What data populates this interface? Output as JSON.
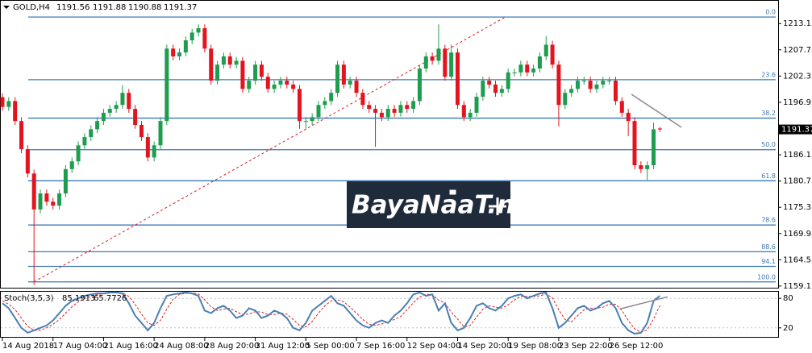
{
  "chart_data": [
    {
      "type": "candlestick",
      "title": "GOLD,H4",
      "categories": [
        "14 Aug 2018",
        null,
        null,
        null,
        null,
        null,
        null,
        null,
        "17 Aug 04:00",
        null,
        null,
        null,
        null,
        null,
        null,
        null,
        "21 Aug 16:00",
        null,
        null,
        null,
        null,
        null,
        null,
        null,
        "24 Aug 08:00",
        null,
        null,
        null,
        null,
        null,
        null,
        null,
        "28 Aug 20:00",
        null,
        null,
        null,
        null,
        null,
        null,
        null,
        "31 Aug 12:00",
        null,
        null,
        null,
        null,
        null,
        null,
        null,
        "5 Sep 00:00",
        null,
        null,
        null,
        null,
        null,
        null,
        null,
        "7 Sep 16:00",
        null,
        null,
        null,
        null,
        null,
        null,
        null,
        "12 Sep 04:00",
        null,
        null,
        null,
        null,
        null,
        null,
        null,
        "14 Sep 20:00",
        null,
        null,
        null,
        null,
        null,
        null,
        null,
        "19 Sep 08:00",
        null,
        null,
        null,
        null,
        null,
        null,
        null,
        "23 Sep 22:00",
        null,
        null,
        null,
        null,
        null,
        null,
        null,
        "26 Sep 12:00",
        null,
        null,
        null,
        null,
        null,
        null,
        null,
        null
      ],
      "open": [
        1198.0,
        1196.0,
        1197.2,
        1193.1,
        1187.3,
        1182.3,
        1174.9,
        1178.2,
        1176.5,
        1175.7,
        1178.2,
        1183.2,
        1184.8,
        1188.1,
        1189.8,
        1191.4,
        1193.1,
        1194.8,
        1195.6,
        1196.4,
        1198.9,
        1195.6,
        1192.3,
        1189.8,
        1185.6,
        1188.1,
        1193.1,
        1208.0,
        1206.4,
        1207.2,
        1209.7,
        1211.3,
        1212.2,
        1208.0,
        1201.4,
        1204.7,
        1206.4,
        1204.7,
        1205.5,
        1199.7,
        1201.4,
        1204.7,
        1202.2,
        1199.7,
        1200.6,
        1201.4,
        1200.6,
        1199.7,
        1193.1,
        1193.1,
        1193.9,
        1196.4,
        1197.2,
        1198.9,
        1204.7,
        1200.6,
        1201.4,
        1198.9,
        1196.4,
        1195.6,
        1194.8,
        1193.9,
        1195.6,
        1194.8,
        1196.4,
        1195.6,
        1197.2,
        1203.9,
        1206.4,
        1205.5,
        1208.0,
        1202.2,
        1207.2,
        1196.4,
        1193.9,
        1194.8,
        1198.1,
        1201.4,
        1200.6,
        1198.9,
        1199.7,
        1203.1,
        1203.1,
        1204.7,
        1203.1,
        1203.9,
        1206.4,
        1208.8,
        1204.7,
        1196.4,
        1198.9,
        1199.7,
        1201.4,
        1201.4,
        1199.7,
        1200.6,
        1201.4,
        1201.4,
        1197.2,
        1194.8,
        1193.1,
        1184.0,
        1183.2,
        1184.0,
        1191.56
      ],
      "high": [
        1198.8,
        1198.0,
        1198.0,
        1193.9,
        1188.1,
        1183.1,
        1179.0,
        1179.0,
        1177.3,
        1179.0,
        1184.0,
        1185.6,
        1188.9,
        1190.6,
        1192.2,
        1193.9,
        1195.6,
        1196.4,
        1197.2,
        1200.5,
        1199.7,
        1196.4,
        1193.1,
        1190.6,
        1188.9,
        1193.9,
        1208.8,
        1208.8,
        1208.0,
        1210.5,
        1212.1,
        1213.0,
        1213.0,
        1208.8,
        1205.5,
        1207.2,
        1207.2,
        1206.3,
        1206.3,
        1202.2,
        1205.5,
        1205.5,
        1203.0,
        1201.4,
        1202.2,
        1202.2,
        1201.4,
        1200.5,
        1193.9,
        1194.7,
        1197.2,
        1198.0,
        1199.7,
        1205.5,
        1205.5,
        1202.2,
        1202.2,
        1199.7,
        1197.2,
        1196.4,
        1195.6,
        1196.4,
        1196.4,
        1197.2,
        1197.2,
        1198.0,
        1204.7,
        1207.2,
        1207.2,
        1213.0,
        1208.8,
        1208.8,
        1208.0,
        1197.2,
        1195.6,
        1198.9,
        1202.2,
        1202.2,
        1201.4,
        1200.5,
        1203.9,
        1203.9,
        1205.5,
        1205.5,
        1204.7,
        1207.2,
        1210.6,
        1209.6,
        1205.5,
        1199.7,
        1200.5,
        1202.2,
        1202.2,
        1202.2,
        1201.4,
        1202.2,
        1202.2,
        1202.2,
        1198.0,
        1195.6,
        1193.9,
        1184.8,
        1184.8,
        1192.8,
        1191.88
      ],
      "low": [
        1195.2,
        1195.2,
        1192.3,
        1186.5,
        1181.5,
        1159.4,
        1174.1,
        1175.7,
        1174.9,
        1174.9,
        1177.4,
        1182.4,
        1184.0,
        1187.3,
        1189.0,
        1190.6,
        1192.3,
        1194.0,
        1194.8,
        1195.6,
        1194.8,
        1191.5,
        1189.0,
        1184.8,
        1184.8,
        1187.3,
        1192.3,
        1205.6,
        1205.6,
        1206.4,
        1208.9,
        1210.5,
        1207.2,
        1200.6,
        1200.6,
        1203.9,
        1203.9,
        1203.9,
        1198.9,
        1198.9,
        1200.6,
        1201.4,
        1198.9,
        1198.9,
        1199.8,
        1199.8,
        1198.9,
        1191.5,
        1191.5,
        1192.3,
        1193.1,
        1195.6,
        1196.4,
        1198.1,
        1199.8,
        1199.8,
        1198.1,
        1195.6,
        1194.8,
        1187.8,
        1193.1,
        1193.1,
        1194.0,
        1194.0,
        1194.8,
        1194.8,
        1196.4,
        1203.1,
        1204.7,
        1204.7,
        1201.4,
        1201.4,
        1195.6,
        1193.1,
        1193.1,
        1194.0,
        1197.3,
        1199.8,
        1198.1,
        1198.1,
        1198.9,
        1202.3,
        1202.3,
        1202.3,
        1202.3,
        1203.1,
        1205.6,
        1203.9,
        1192.0,
        1195.6,
        1198.1,
        1198.9,
        1200.6,
        1198.9,
        1198.9,
        1199.8,
        1200.6,
        1196.4,
        1194.0,
        1190.0,
        1183.2,
        1182.4,
        1181.0,
        1183.2,
        1190.88
      ],
      "close": [
        1196.0,
        1197.2,
        1193.1,
        1187.3,
        1182.3,
        1174.9,
        1178.2,
        1176.5,
        1175.7,
        1178.2,
        1183.2,
        1184.8,
        1188.1,
        1189.8,
        1191.4,
        1193.1,
        1194.8,
        1195.6,
        1196.4,
        1198.9,
        1195.6,
        1192.3,
        1189.8,
        1185.6,
        1188.1,
        1193.1,
        1208.0,
        1206.4,
        1207.2,
        1209.7,
        1211.3,
        1212.2,
        1208.0,
        1201.4,
        1204.7,
        1206.4,
        1204.7,
        1205.5,
        1199.7,
        1201.4,
        1204.7,
        1202.2,
        1199.7,
        1200.6,
        1201.4,
        1200.6,
        1199.7,
        1193.1,
        1193.1,
        1193.9,
        1196.4,
        1197.2,
        1198.9,
        1204.7,
        1200.6,
        1201.4,
        1198.9,
        1196.4,
        1195.6,
        1194.8,
        1193.9,
        1195.6,
        1194.8,
        1196.4,
        1195.6,
        1197.2,
        1203.9,
        1206.4,
        1205.5,
        1208.0,
        1202.2,
        1207.2,
        1196.4,
        1193.9,
        1194.8,
        1198.1,
        1201.4,
        1200.6,
        1198.9,
        1199.7,
        1203.1,
        1203.1,
        1204.7,
        1203.1,
        1203.9,
        1206.4,
        1208.8,
        1204.7,
        1196.4,
        1198.9,
        1199.7,
        1201.4,
        1201.4,
        1199.7,
        1200.6,
        1201.4,
        1201.4,
        1197.2,
        1194.8,
        1193.1,
        1184.0,
        1183.2,
        1184.0,
        1191.4,
        1191.37
      ],
      "up_color": "#1f9d4e",
      "down_color": "#e3141e",
      "ylim": [
        1158.8,
        1218.0
      ],
      "yticks": [
        1213.15,
        1207.75,
        1202.35,
        1196.95,
        1191.55,
        1186.15,
        1180.75,
        1175.35,
        1169.95,
        1164.55,
        1159.15
      ],
      "fib_color": "#3a78b8",
      "fib_levels": [
        {
          "label": "0.0",
          "value": 1214.5
        },
        {
          "label": "23.6",
          "value": 1201.6
        },
        {
          "label": "38.2",
          "value": 1193.7
        },
        {
          "label": "50.0",
          "value": 1187.2
        },
        {
          "label": "61.8",
          "value": 1180.8
        },
        {
          "label": "78.6",
          "value": 1171.7
        },
        {
          "label": "88.6",
          "value": 1166.2
        },
        {
          "label": "94.1",
          "value": 1163.2
        },
        {
          "label": "100.0",
          "value": 1160.0
        }
      ],
      "trendlines": [
        {
          "x": [
            5,
            79.7
          ],
          "y": [
            1160.0,
            1214.6
          ],
          "color": "#d62020",
          "dashed": true
        },
        {
          "x": [
            99.5,
            107.4
          ],
          "y": [
            1198.6,
            1191.8
          ],
          "color": "#8a8a8a",
          "dashed": false
        }
      ],
      "watermark": "BayaNaaT.ne"
    },
    {
      "type": "line",
      "title": "Stoch(3,5,3)",
      "series": [
        {
          "name": "Main",
          "color": "#4a7fb5",
          "dashed": false,
          "values": [
            70,
            60,
            40,
            20,
            10,
            15,
            20,
            25,
            35,
            50,
            65,
            75,
            80,
            85,
            88,
            90,
            90,
            92,
            92,
            90,
            70,
            45,
            30,
            15,
            30,
            60,
            85,
            88,
            90,
            92,
            90,
            85,
            55,
            50,
            60,
            65,
            55,
            40,
            45,
            60,
            55,
            40,
            45,
            55,
            50,
            40,
            20,
            15,
            30,
            55,
            65,
            75,
            85,
            70,
            65,
            50,
            35,
            25,
            20,
            30,
            35,
            30,
            45,
            55,
            70,
            88,
            92,
            85,
            88,
            55,
            70,
            30,
            15,
            20,
            40,
            65,
            70,
            60,
            55,
            65,
            80,
            85,
            88,
            80,
            85,
            90,
            92,
            60,
            20,
            30,
            45,
            60,
            65,
            55,
            60,
            70,
            75,
            60,
            30,
            15,
            8,
            10,
            30,
            75,
            85.1913
          ]
        },
        {
          "name": "Signal",
          "color": "#e02020",
          "dashed": true,
          "values": [
            75,
            68,
            57,
            40,
            23,
            15,
            15,
            20,
            27,
            37,
            50,
            63,
            73,
            80,
            84,
            88,
            89,
            91,
            91,
            91,
            84,
            68,
            48,
            30,
            25,
            35,
            58,
            78,
            88,
            90,
            91,
            89,
            77,
            63,
            55,
            58,
            60,
            53,
            47,
            48,
            53,
            52,
            47,
            47,
            50,
            48,
            37,
            25,
            22,
            33,
            50,
            65,
            75,
            77,
            73,
            62,
            50,
            37,
            27,
            25,
            28,
            32,
            37,
            43,
            57,
            71,
            83,
            88,
            88,
            76,
            71,
            52,
            38,
            22,
            25,
            42,
            58,
            65,
            62,
            60,
            67,
            77,
            84,
            84,
            84,
            85,
            89,
            81,
            57,
            37,
            32,
            45,
            57,
            60,
            60,
            62,
            68,
            68,
            55,
            35,
            18,
            11,
            16,
            38,
            65.7726
          ]
        }
      ],
      "ylim": [
        0,
        100
      ],
      "yticks": [
        80,
        20
      ],
      "trendlines": [
        {
          "x": [
            97.8,
            105.2
          ],
          "y": [
            58.8,
            83.1
          ],
          "color": "#8a8a8a",
          "dashed": false
        }
      ]
    }
  ]
}
